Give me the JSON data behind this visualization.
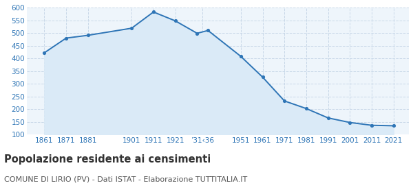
{
  "years": [
    1861,
    1871,
    1881,
    1901,
    1911,
    1921,
    1931,
    1936,
    1951,
    1961,
    1971,
    1981,
    1991,
    2001,
    2011,
    2021
  ],
  "population": [
    422,
    480,
    491,
    519,
    583,
    548,
    499,
    510,
    408,
    326,
    232,
    202,
    165,
    147,
    136,
    134
  ],
  "line_color": "#2e75b6",
  "fill_color": "#daeaf7",
  "marker_color": "#2e75b6",
  "bg_color": "#eef5fb",
  "grid_color": "#c8d8e8",
  "ylim": [
    100,
    600
  ],
  "yticks": [
    100,
    150,
    200,
    250,
    300,
    350,
    400,
    450,
    500,
    550,
    600
  ],
  "xtick_positions": [
    1861,
    1871,
    1881,
    1901,
    1911,
    1921,
    1933.5,
    1951,
    1961,
    1971,
    1981,
    1991,
    2001,
    2011,
    2021
  ],
  "xtick_labels": [
    "1861",
    "1871",
    "1881",
    "1901",
    "1911",
    "1921",
    "’31‹36",
    "1951",
    "1961",
    "1971",
    "1981",
    "1991",
    "2001",
    "2011",
    "2021"
  ],
  "xlim": [
    1853,
    2028
  ],
  "title": "Popolazione residente ai censimenti",
  "subtitle": "COMUNE DI LIRIO (PV) - Dati ISTAT - Elaborazione TUTTITALIA.IT",
  "title_fontsize": 10.5,
  "subtitle_fontsize": 8,
  "axis_label_color": "#2e75b6",
  "title_color": "#333333",
  "subtitle_color": "#555555"
}
